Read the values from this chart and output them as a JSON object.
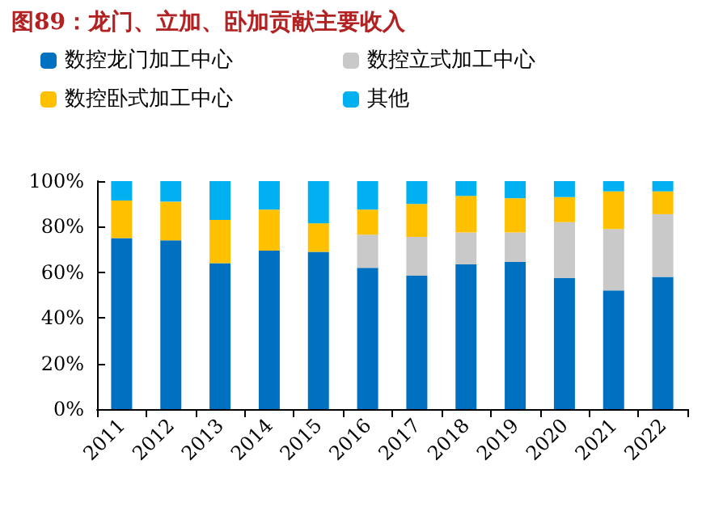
{
  "chart_data": {
    "type": "bar",
    "title": "图89：龙门、立加、卧加贡献主要收入",
    "stacked": true,
    "categories": [
      "2011",
      "2012",
      "2013",
      "2014",
      "2015",
      "2016",
      "2017",
      "2018",
      "2019",
      "2020",
      "2021",
      "2022"
    ],
    "series": [
      {
        "name": "数控龙门加工中心",
        "color": "#0070c0",
        "values": [
          75,
          74,
          64,
          69.5,
          69,
          62,
          58.5,
          63.5,
          64.5,
          57.5,
          52,
          58
        ]
      },
      {
        "name": "数控立式加工中心",
        "color": "#c9c9c9",
        "values": [
          0,
          0,
          0,
          0,
          0,
          14.5,
          17,
          14,
          13,
          24.5,
          27,
          27.5
        ]
      },
      {
        "name": "数控卧式加工中心",
        "color": "#ffc000",
        "values": [
          16.5,
          17,
          19,
          18,
          12.5,
          11,
          14.5,
          16,
          15,
          11,
          16.5,
          10
        ]
      },
      {
        "name": "其他",
        "color": "#00b0f0",
        "values": [
          8.5,
          9,
          17,
          12.5,
          18.5,
          12.5,
          10,
          6.5,
          7.5,
          7,
          4.5,
          4.5
        ]
      }
    ],
    "ylim": [
      0,
      100
    ],
    "yticks": [
      {
        "value": 0,
        "label": "0%"
      },
      {
        "value": 20,
        "label": "20%"
      },
      {
        "value": 40,
        "label": "40%"
      },
      {
        "value": 60,
        "label": "60%"
      },
      {
        "value": 80,
        "label": "80%"
      },
      {
        "value": 100,
        "label": "100%"
      }
    ],
    "legend": "top",
    "grid": false
  }
}
